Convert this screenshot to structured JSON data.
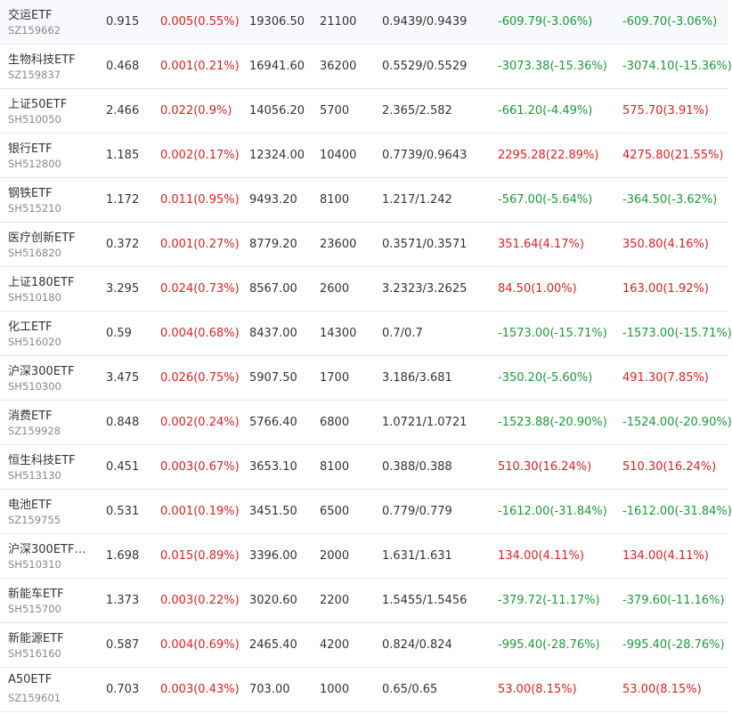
{
  "colors": {
    "up": "#e02020",
    "down": "#1a9a3a",
    "text": "#333333",
    "code": "#888888"
  },
  "rows": [
    {
      "name": "交运ETF",
      "code": "SZ159662",
      "price": "0.915",
      "change": "0.005(0.55%)",
      "change_dir": "up",
      "amount": "19306.50",
      "volume": "21100",
      "nav": "0.9439/0.9439",
      "pnl1": "-609.79(-3.06%)",
      "pnl1_dir": "down",
      "pnl2": "-609.70(-3.06%)",
      "pnl2_dir": "down"
    },
    {
      "name": "生物科技ETF",
      "code": "SZ159837",
      "price": "0.468",
      "change": "0.001(0.21%)",
      "change_dir": "up",
      "amount": "16941.60",
      "volume": "36200",
      "nav": "0.5529/0.5529",
      "pnl1": "-3073.38(-15.36%)",
      "pnl1_dir": "down",
      "pnl2": "-3074.10(-15.36%)",
      "pnl2_dir": "down"
    },
    {
      "name": "上证50ETF",
      "code": "SH510050",
      "price": "2.466",
      "change": "0.022(0.9%)",
      "change_dir": "up",
      "amount": "14056.20",
      "volume": "5700",
      "nav": "2.365/2.582",
      "pnl1": "-661.20(-4.49%)",
      "pnl1_dir": "down",
      "pnl2": "575.70(3.91%)",
      "pnl2_dir": "up"
    },
    {
      "name": "银行ETF",
      "code": "SH512800",
      "price": "1.185",
      "change": "0.002(0.17%)",
      "change_dir": "up",
      "amount": "12324.00",
      "volume": "10400",
      "nav": "0.7739/0.9643",
      "pnl1": "2295.28(22.89%)",
      "pnl1_dir": "up",
      "pnl2": "4275.80(21.55%)",
      "pnl2_dir": "up"
    },
    {
      "name": "钢铁ETF",
      "code": "SH515210",
      "price": "1.172",
      "change": "0.011(0.95%)",
      "change_dir": "up",
      "amount": "9493.20",
      "volume": "8100",
      "nav": "1.217/1.242",
      "pnl1": "-567.00(-5.64%)",
      "pnl1_dir": "down",
      "pnl2": "-364.50(-3.62%)",
      "pnl2_dir": "down"
    },
    {
      "name": "医疗创新ETF",
      "code": "SH516820",
      "price": "0.372",
      "change": "0.001(0.27%)",
      "change_dir": "up",
      "amount": "8779.20",
      "volume": "23600",
      "nav": "0.3571/0.3571",
      "pnl1": "351.64(4.17%)",
      "pnl1_dir": "up",
      "pnl2": "350.80(4.16%)",
      "pnl2_dir": "up"
    },
    {
      "name": "上证180ETF",
      "code": "SH510180",
      "price": "3.295",
      "change": "0.024(0.73%)",
      "change_dir": "up",
      "amount": "8567.00",
      "volume": "2600",
      "nav": "3.2323/3.2625",
      "pnl1": "84.50(1.00%)",
      "pnl1_dir": "up",
      "pnl2": "163.00(1.92%)",
      "pnl2_dir": "up"
    },
    {
      "name": "化工ETF",
      "code": "SH516020",
      "price": "0.59",
      "change": "0.004(0.68%)",
      "change_dir": "up",
      "amount": "8437.00",
      "volume": "14300",
      "nav": "0.7/0.7",
      "pnl1": "-1573.00(-15.71%)",
      "pnl1_dir": "down",
      "pnl2": "-1573.00(-15.71%)",
      "pnl2_dir": "down"
    },
    {
      "name": "沪深300ETF",
      "code": "SH510300",
      "price": "3.475",
      "change": "0.026(0.75%)",
      "change_dir": "up",
      "amount": "5907.50",
      "volume": "1700",
      "nav": "3.186/3.681",
      "pnl1": "-350.20(-5.60%)",
      "pnl1_dir": "down",
      "pnl2": "491.30(7.85%)",
      "pnl2_dir": "up"
    },
    {
      "name": "消费ETF",
      "code": "SZ159928",
      "price": "0.848",
      "change": "0.002(0.24%)",
      "change_dir": "up",
      "amount": "5766.40",
      "volume": "6800",
      "nav": "1.0721/1.0721",
      "pnl1": "-1523.88(-20.90%)",
      "pnl1_dir": "down",
      "pnl2": "-1524.00(-20.90%)",
      "pnl2_dir": "down"
    },
    {
      "name": "恒生科技ETF",
      "code": "SH513130",
      "price": "0.451",
      "change": "0.003(0.67%)",
      "change_dir": "up",
      "amount": "3653.10",
      "volume": "8100",
      "nav": "0.388/0.388",
      "pnl1": "510.30(16.24%)",
      "pnl1_dir": "up",
      "pnl2": "510.30(16.24%)",
      "pnl2_dir": "up"
    },
    {
      "name": "电池ETF",
      "code": "SZ159755",
      "price": "0.531",
      "change": "0.001(0.19%)",
      "change_dir": "up",
      "amount": "3451.50",
      "volume": "6500",
      "nav": "0.779/0.779",
      "pnl1": "-1612.00(-31.84%)",
      "pnl1_dir": "down",
      "pnl2": "-1612.00(-31.84%)",
      "pnl2_dir": "down"
    },
    {
      "name": "沪深300ETF…",
      "code": "SH510310",
      "price": "1.698",
      "change": "0.015(0.89%)",
      "change_dir": "up",
      "amount": "3396.00",
      "volume": "2000",
      "nav": "1.631/1.631",
      "pnl1": "134.00(4.11%)",
      "pnl1_dir": "up",
      "pnl2": "134.00(4.11%)",
      "pnl2_dir": "up"
    },
    {
      "name": "新能车ETF",
      "code": "SH515700",
      "price": "1.373",
      "change": "0.003(0.22%)",
      "change_dir": "up",
      "amount": "3020.60",
      "volume": "2200",
      "nav": "1.5455/1.5456",
      "pnl1": "-379.72(-11.17%)",
      "pnl1_dir": "down",
      "pnl2": "-379.60(-11.16%)",
      "pnl2_dir": "down"
    },
    {
      "name": "新能源ETF",
      "code": "SH516160",
      "price": "0.587",
      "change": "0.004(0.69%)",
      "change_dir": "up",
      "amount": "2465.40",
      "volume": "4200",
      "nav": "0.824/0.824",
      "pnl1": "-995.40(-28.76%)",
      "pnl1_dir": "down",
      "pnl2": "-995.40(-28.76%)",
      "pnl2_dir": "down"
    },
    {
      "name": "A50ETF",
      "code": "SZ159601",
      "price": "0.703",
      "change": "0.003(0.43%)",
      "change_dir": "up",
      "amount": "703.00",
      "volume": "1000",
      "nav": "0.65/0.65",
      "pnl1": "53.00(8.15%)",
      "pnl1_dir": "up",
      "pnl2": "53.00(8.15%)",
      "pnl2_dir": "up"
    }
  ]
}
